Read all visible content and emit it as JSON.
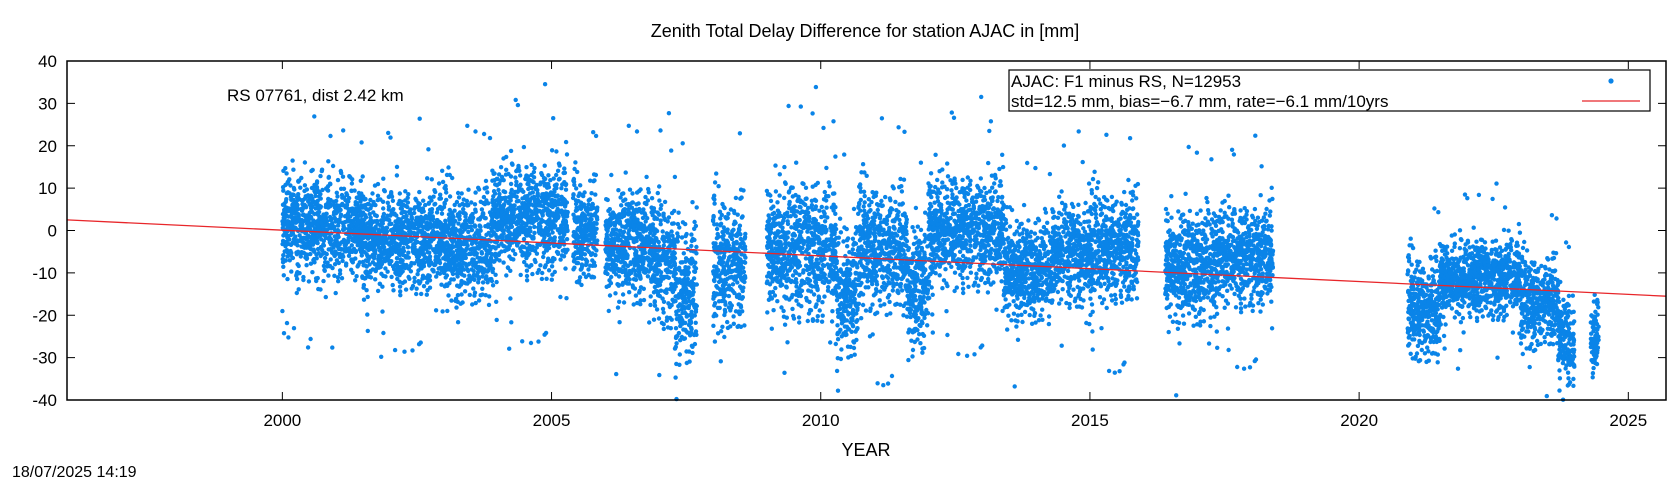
{
  "chart_data": {
    "type": "scatter",
    "title": "Zenith Total Delay Difference for station AJAC in [mm]",
    "xlabel": "YEAR",
    "ylabel": "",
    "xlim": [
      1996,
      2025.7
    ],
    "ylim": [
      -40,
      40
    ],
    "x_ticks": [
      2000,
      2005,
      2010,
      2015,
      2020,
      2025
    ],
    "y_ticks": [
      -40,
      -30,
      -20,
      -10,
      0,
      10,
      20,
      30,
      40
    ],
    "grid": false,
    "legend_position": "top-right",
    "annotation": "RS 07761, dist 2.42 km",
    "legend": {
      "line1": "AJAC: F1 minus RS, N=12953",
      "line2": "std=12.5 mm, bias=−6.7 mm, rate=−6.1 mm/10yrs"
    },
    "series": [
      {
        "type": "scatter",
        "color": "#0a84e8",
        "description": "daily ZTD differences; segments [start_year, end_year, mean_mm, spread_mm]",
        "segments": [
          [
            2000.0,
            2001.5,
            1,
            9
          ],
          [
            2001.5,
            2003.0,
            -2,
            9
          ],
          [
            2003.0,
            2003.9,
            -3,
            10
          ],
          [
            2003.9,
            2005.3,
            3,
            10
          ],
          [
            2005.4,
            2005.85,
            0,
            9
          ],
          [
            2006.0,
            2006.9,
            -3,
            10
          ],
          [
            2006.9,
            2007.3,
            -7,
            11
          ],
          [
            2007.3,
            2007.7,
            -14,
            13
          ],
          [
            2008.0,
            2008.6,
            -8,
            12
          ],
          [
            2009.0,
            2010.3,
            -4,
            12
          ],
          [
            2010.3,
            2010.7,
            -14,
            12
          ],
          [
            2010.7,
            2011.6,
            -4,
            11
          ],
          [
            2011.6,
            2012.0,
            -13,
            11
          ],
          [
            2012.0,
            2013.4,
            0,
            10
          ],
          [
            2013.4,
            2014.3,
            -9,
            9
          ],
          [
            2014.3,
            2015.0,
            -5,
            9
          ],
          [
            2015.0,
            2015.9,
            -4,
            10
          ],
          [
            2016.4,
            2017.3,
            -8,
            10
          ],
          [
            2017.3,
            2018.4,
            -6,
            9
          ],
          [
            2020.9,
            2021.5,
            -18,
            9
          ],
          [
            2021.5,
            2023.0,
            -11,
            7
          ],
          [
            2023.0,
            2023.7,
            -17,
            8
          ],
          [
            2023.7,
            2024.0,
            -25,
            8
          ],
          [
            2024.3,
            2024.45,
            -24,
            7
          ]
        ]
      },
      {
        "type": "line",
        "color": "#e8262a",
        "description": "linear trend",
        "x": [
          1996,
          2025.7
        ],
        "y": [
          2.5,
          -15.5
        ]
      }
    ]
  },
  "footer": {
    "timestamp": "18/07/2025 14:19"
  }
}
